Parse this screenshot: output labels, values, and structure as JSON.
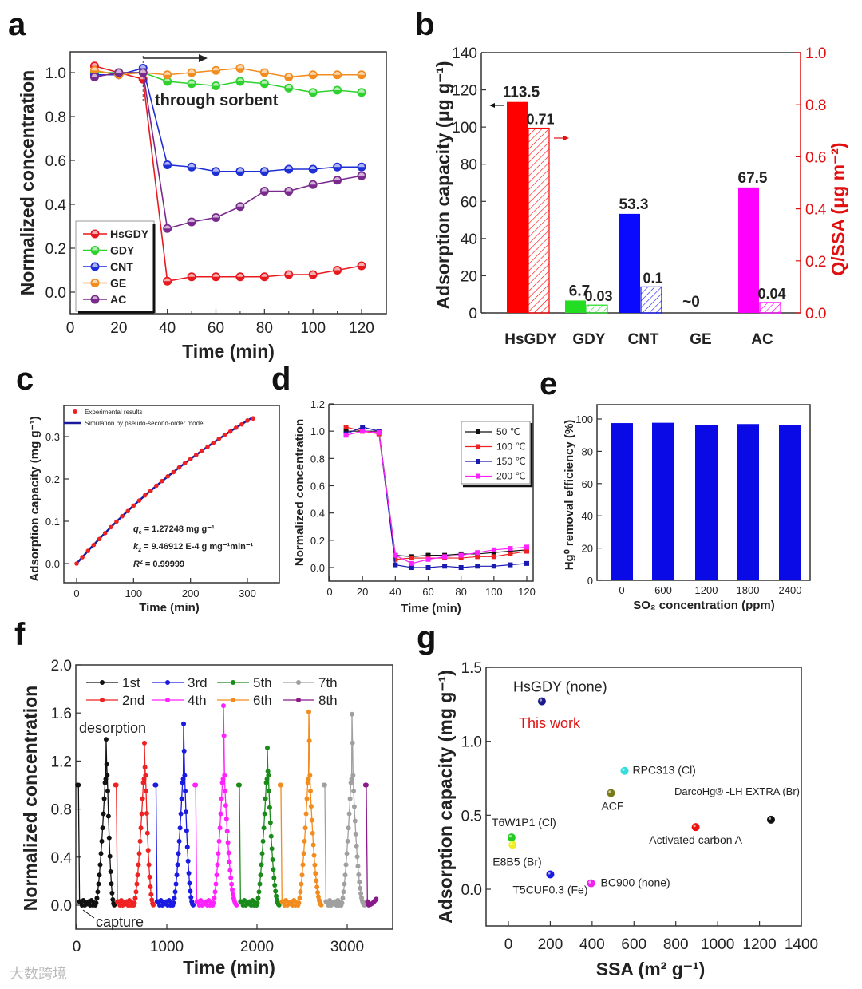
{
  "watermark": "大数跨境",
  "chart_data": [
    {
      "panel": "a",
      "type": "line",
      "xlabel": "Time (min)",
      "ylabel": "Normalized  concentration",
      "xlim": [
        0,
        130
      ],
      "ylim": [
        -0.1,
        1.1
      ],
      "xticks": [
        "0",
        "20",
        "40",
        "60",
        "80",
        "100",
        "120"
      ],
      "yticks": [
        "0.0",
        "0.2",
        "0.4",
        "0.6",
        "0.8",
        "1.0"
      ],
      "annotation": "through sorbent",
      "legend_position": "bottom-left",
      "x": [
        10,
        20,
        30,
        40,
        50,
        60,
        70,
        80,
        90,
        100,
        110,
        120
      ],
      "series": [
        {
          "name": "HsGDY",
          "color": "#e8191f",
          "values": [
            1.03,
            1.0,
            0.97,
            0.05,
            0.07,
            0.07,
            0.07,
            0.07,
            0.08,
            0.08,
            0.1,
            0.12
          ]
        },
        {
          "name": "GDY",
          "color": "#2ed12e",
          "values": [
            1.0,
            1.0,
            1.0,
            0.96,
            0.95,
            0.94,
            0.96,
            0.95,
            0.93,
            0.91,
            0.92,
            0.91
          ]
        },
        {
          "name": "CNT",
          "color": "#1f2fd6",
          "values": [
            0.99,
            0.99,
            1.02,
            0.58,
            0.57,
            0.55,
            0.55,
            0.55,
            0.56,
            0.56,
            0.57,
            0.57
          ]
        },
        {
          "name": "GE",
          "color": "#f28c1e",
          "values": [
            1.01,
            0.99,
            1.0,
            0.99,
            1.0,
            1.01,
            1.02,
            1.0,
            0.98,
            0.99,
            0.99,
            0.99
          ]
        },
        {
          "name": "AC",
          "color": "#7a2a8c",
          "values": [
            0.98,
            1.0,
            1.0,
            0.29,
            0.32,
            0.34,
            0.39,
            0.46,
            0.46,
            0.49,
            0.51,
            0.53
          ]
        }
      ]
    },
    {
      "panel": "b",
      "type": "bar",
      "categories": [
        "HsGDY",
        "GDY",
        "CNT",
        "GE",
        "AC"
      ],
      "colors": [
        "#ff0000",
        "#22dd22",
        "#0a0aff",
        "#888888",
        "#ff00ff"
      ],
      "ylabel": "Adsorption capacity (μg g⁻¹)",
      "ylabel2": "Q/SSA (μg m⁻²)",
      "ylim": [
        0,
        140
      ],
      "ylim2": [
        0,
        1.0
      ],
      "yticks": [
        "0",
        "20",
        "40",
        "60",
        "80",
        "100",
        "120",
        "140"
      ],
      "yticks2": [
        "0.0",
        "0.2",
        "0.4",
        "0.6",
        "0.8",
        "1.0"
      ],
      "series": [
        {
          "name": "Adsorption capacity",
          "values": [
            113.5,
            6.7,
            53.3,
            0,
            67.5
          ],
          "labels": [
            "113.5",
            "6.7",
            "53.3",
            "~0",
            "67.5"
          ]
        },
        {
          "name": "Q/SSA",
          "values": [
            0.71,
            0.03,
            0.1,
            null,
            0.04
          ],
          "labels": [
            "0.71",
            "0.03",
            "0.1",
            "",
            "0.04"
          ]
        }
      ]
    },
    {
      "panel": "c",
      "type": "scatter",
      "xlabel": "Time (min)",
      "ylabel": "Adsorption capacity (mg g⁻¹)",
      "xlim": [
        -25,
        355
      ],
      "ylim": [
        -0.04,
        0.36
      ],
      "xticks": [
        "0",
        "100",
        "200",
        "300"
      ],
      "yticks": [
        "0.0",
        "0.1",
        "0.2",
        "0.3"
      ],
      "legend": [
        "Experimental results",
        "Simulation by pseudo-second-order model"
      ],
      "legend_position": "top-left",
      "annotations": [
        "= 1.27248 mg g⁻¹",
        "= 9.46912 E-4  g mg⁻¹min⁻¹",
        "= 0.99999"
      ],
      "annotation_symbols": [
        "q",
        "k",
        "R"
      ],
      "model": {
        "qe": 1.27248,
        "k2": 0.000946912
      },
      "x": [
        0,
        10,
        20,
        30,
        40,
        50,
        60,
        70,
        80,
        90,
        100,
        110,
        120,
        130,
        140,
        150,
        160,
        170,
        180,
        190,
        200,
        210,
        220,
        230,
        240,
        250,
        260,
        270,
        280,
        290,
        300,
        310
      ],
      "values": [
        0,
        0.015,
        0.03,
        0.044,
        0.058,
        0.072,
        0.086,
        0.099,
        0.112,
        0.124,
        0.137,
        0.149,
        0.161,
        0.172,
        0.184,
        0.195,
        0.206,
        0.216,
        0.227,
        0.237,
        0.247,
        0.257,
        0.267,
        0.276,
        0.285,
        0.295,
        0.304,
        0.312,
        0.321,
        0.329,
        0.338,
        0.343
      ],
      "colors": {
        "points": "#ee2222",
        "line": "#1a1aa0"
      }
    },
    {
      "panel": "d",
      "type": "line",
      "xlabel": "Time (min)",
      "ylabel": "Normalized  concentration",
      "xlim": [
        0,
        125
      ],
      "ylim": [
        -0.1,
        1.2
      ],
      "xticks": [
        "0",
        "20",
        "40",
        "60",
        "80",
        "100",
        "120"
      ],
      "yticks": [
        "0.0",
        "0.2",
        "0.4",
        "0.6",
        "0.8",
        "1.0",
        "1.2"
      ],
      "legend_position": "top-right",
      "x": [
        10,
        20,
        30,
        40,
        50,
        60,
        70,
        80,
        90,
        100,
        110,
        120
      ],
      "series": [
        {
          "name": "50 ℃",
          "color": "#111111",
          "values": [
            1.0,
            1.0,
            1.0,
            0.09,
            0.08,
            0.09,
            0.09,
            0.1,
            0.1,
            0.11,
            0.12,
            0.13
          ]
        },
        {
          "name": "100 ℃",
          "color": "#ee2222",
          "values": [
            1.03,
            1.0,
            0.98,
            0.06,
            0.07,
            0.07,
            0.07,
            0.07,
            0.08,
            0.08,
            0.1,
            0.12
          ]
        },
        {
          "name": "150 ℃",
          "color": "#1a1ab0",
          "values": [
            0.98,
            1.03,
            1.0,
            0.02,
            0.0,
            0.0,
            0.01,
            0.0,
            0.01,
            0.01,
            0.02,
            0.03
          ]
        },
        {
          "name": "200 ℃",
          "color": "#ff22ff",
          "values": [
            0.97,
            1.0,
            0.99,
            0.09,
            0.03,
            0.06,
            0.08,
            0.09,
            0.11,
            0.13,
            0.14,
            0.15
          ]
        }
      ]
    },
    {
      "panel": "e",
      "type": "bar",
      "xlabel": "SO₂ concentration (ppm)",
      "ylabel": "Hg⁰ removal efficiency (%)",
      "ylim": [
        0,
        108
      ],
      "categories": [
        "0",
        "600",
        "1200",
        "1800",
        "2400"
      ],
      "yticks": [
        "0",
        "20",
        "40",
        "60",
        "80",
        "100"
      ],
      "values": [
        97.5,
        97.7,
        96.4,
        96.9,
        96.2
      ],
      "color": "#0a0ae6"
    },
    {
      "panel": "f",
      "type": "line",
      "xlabel": "Time (min)",
      "ylabel": "Normalized concentration",
      "xlim": [
        0,
        3500
      ],
      "ylim": [
        -0.2,
        2.0
      ],
      "xticks": [
        "0",
        "1000",
        "2000",
        "3000"
      ],
      "yticks": [
        "0.0",
        "0.4",
        "0.8",
        "1.2",
        "1.6",
        "2.0"
      ],
      "annotations": [
        "desorption",
        "capture"
      ],
      "legend_position": "top",
      "cycles": [
        {
          "name": "1st",
          "color": "#111111",
          "start": 20,
          "peak_time": 327,
          "peak": 1.38,
          "end": 420
        },
        {
          "name": "2nd",
          "color": "#ee2222",
          "start": 440,
          "peak_time": 752,
          "peak": 1.35,
          "end": 855
        },
        {
          "name": "3rd",
          "color": "#1a1ae0",
          "start": 880,
          "peak_time": 1186,
          "peak": 1.51,
          "end": 1295
        },
        {
          "name": "4th",
          "color": "#ff22ff",
          "start": 1320,
          "peak_time": 1628,
          "peak": 1.66,
          "end": 1780
        },
        {
          "name": "5th",
          "color": "#1a8a1a",
          "start": 1805,
          "peak_time": 2115,
          "peak": 1.31,
          "end": 2250
        },
        {
          "name": "6th",
          "color": "#f28c1e",
          "start": 2265,
          "peak_time": 2575,
          "peak": 1.61,
          "end": 2720
        },
        {
          "name": "7th",
          "color": "#a0a0a0",
          "start": 2752,
          "peak_time": 3053,
          "peak": 1.59,
          "end": 3195
        },
        {
          "name": "8th",
          "color": "#8a1a8a",
          "start": 3212,
          "peak_time": null,
          "peak": 0.06,
          "end": 3330
        }
      ]
    },
    {
      "panel": "g",
      "type": "scatter",
      "xlabel": "SSA (m² g⁻¹)",
      "ylabel": "Adsorption capacity (mg g⁻¹)",
      "xlim": [
        -100,
        1400
      ],
      "ylim": [
        -0.25,
        1.5
      ],
      "xticks": [
        "0",
        "200",
        "400",
        "600",
        "800",
        "1000",
        "1200",
        "1400"
      ],
      "yticks": [
        "0.0",
        "0.5",
        "1.0",
        "1.5"
      ],
      "highlight": "This work",
      "points": [
        {
          "label": "HsGDY (none)",
          "x": 160,
          "y": 1.27,
          "color": "#1a1a8a"
        },
        {
          "label": "RPC313 (Cl)",
          "x": 555,
          "y": 0.8,
          "color": "#33dddd"
        },
        {
          "label": "ACF",
          "x": 490,
          "y": 0.65,
          "color": "#7a7a1a"
        },
        {
          "label": "DarcoHg® -LH EXTRA (Br)",
          "x": 1255,
          "y": 0.47,
          "color": "#111111"
        },
        {
          "label": "Activated carbon A",
          "x": 895,
          "y": 0.42,
          "color": "#ee1111"
        },
        {
          "label": "T6W1P1 (Cl)",
          "x": 15,
          "y": 0.35,
          "color": "#22cc22"
        },
        {
          "label": "E8B5 (Br)",
          "x": 20,
          "y": 0.3,
          "color": "#eeee22"
        },
        {
          "label": "T5CUF0.3 (Fe)",
          "x": 200,
          "y": 0.1,
          "color": "#1a1ae0"
        },
        {
          "label": "BC900 (none)",
          "x": 395,
          "y": 0.04,
          "color": "#ee22ee"
        }
      ]
    }
  ],
  "panel_letters": [
    "a",
    "b",
    "c",
    "d",
    "e",
    "f",
    "g"
  ]
}
